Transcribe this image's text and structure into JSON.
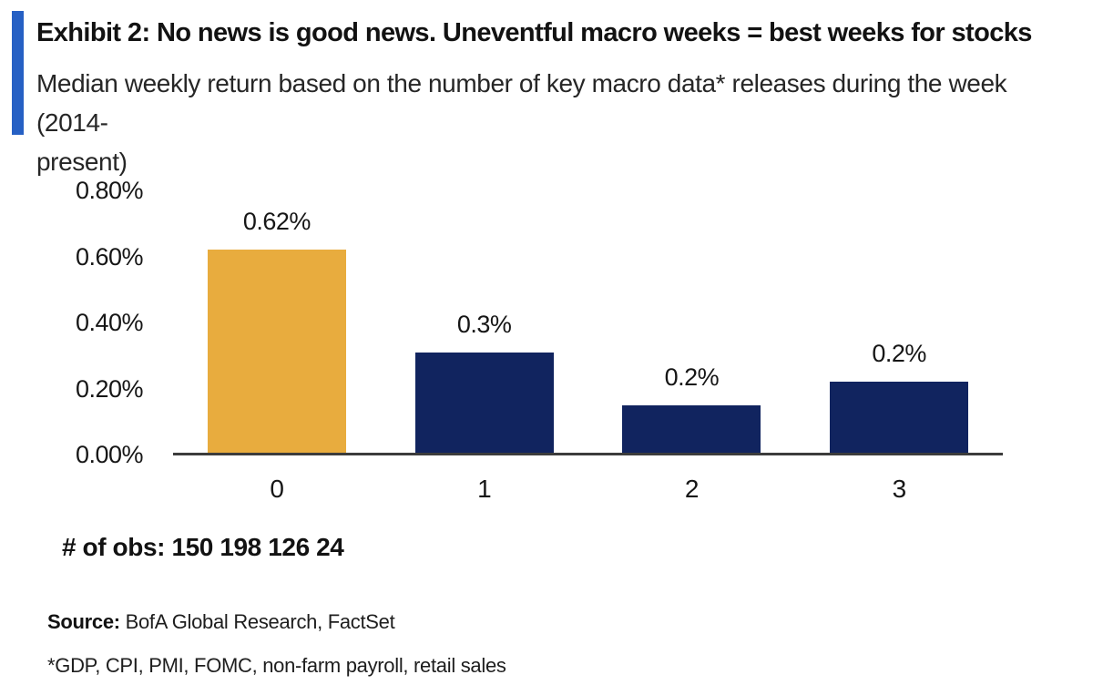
{
  "header": {
    "exhibit_title": "Exhibit 2: No news is good news. Uneventful macro weeks = best weeks for stocks",
    "subtitle_line1": "Median weekly return based on the number of key macro data* releases during the week (2014-",
    "subtitle_line2": "present)",
    "accent_color": "#2660c4"
  },
  "chart_data": {
    "type": "bar",
    "title": "Median weekly return based on the number of key macro data* releases during the week (2014-present)",
    "categories": [
      "0",
      "1",
      "2",
      "3"
    ],
    "values": [
      0.62,
      0.31,
      0.15,
      0.22
    ],
    "bar_labels": [
      "0.62%",
      "0.3%",
      "0.2%",
      "0.2%"
    ],
    "bar_colors": [
      "#e8ac3e",
      "#11245f",
      "#11245f",
      "#11245f"
    ],
    "observations": [
      150,
      198,
      126,
      24
    ],
    "xlabel": "",
    "ylabel": "",
    "ylim": [
      0,
      0.8
    ],
    "yticks": [
      "0.00%",
      "0.20%",
      "0.40%",
      "0.60%",
      "0.80%"
    ],
    "ytick_values": [
      0.0,
      0.2,
      0.4,
      0.6,
      0.8
    ],
    "grid": false,
    "legend": "none",
    "axis_color": "#3c3c3c",
    "unit": "percent weekly return"
  },
  "footer": {
    "obs_text": "# of obs: 150 198 126 24",
    "source_label": "Source:",
    "source_text": " BofA Global Research, FactSet",
    "footnote": "*GDP, CPI, PMI, FOMC, non-farm payroll, retail sales"
  }
}
